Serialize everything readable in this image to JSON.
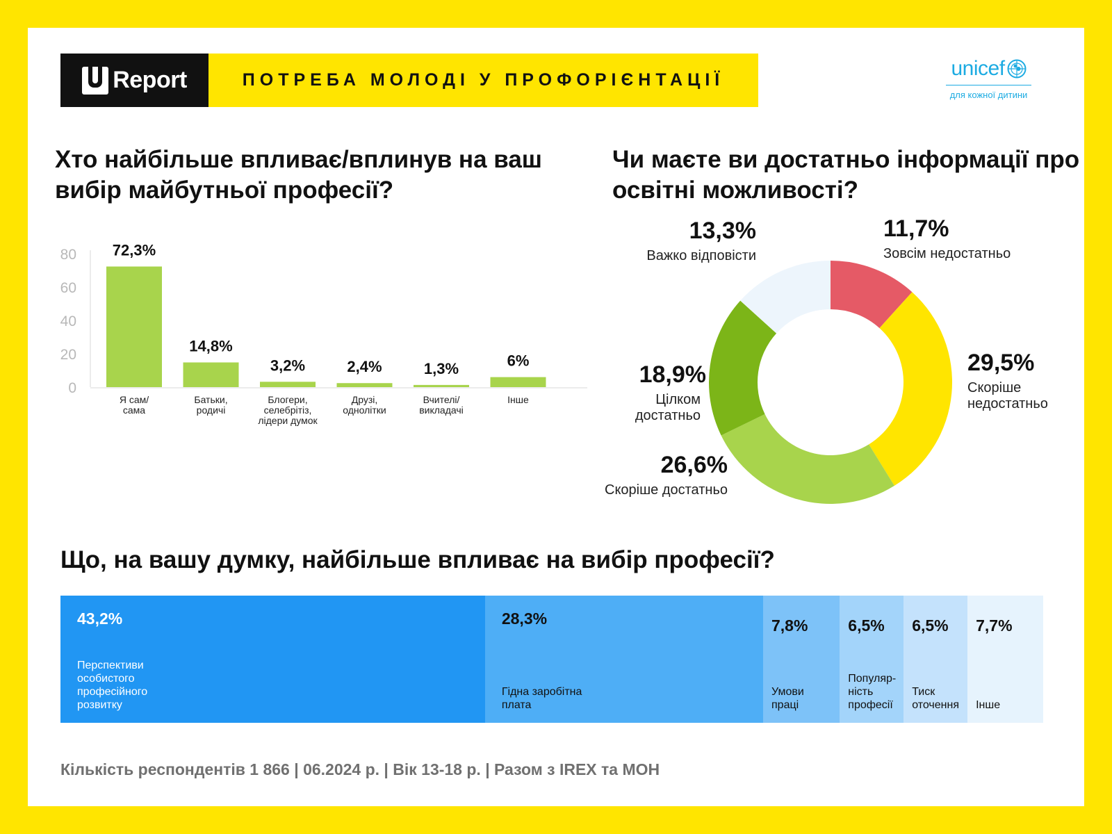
{
  "header": {
    "logo_text": "Report",
    "title": "ПОТРЕБА МОЛОДІ У ПРОФОРІЄНТАЦІЇ"
  },
  "unicef": {
    "brand": "unicef",
    "tagline": "для кожної дитини",
    "color": "#1CABE2"
  },
  "colors": {
    "background": "#FFE500",
    "card": "#FFFFFF"
  },
  "questions": {
    "q1": "Хто найбільше впливає/вплинув на ваш вибір майбутньої професії?",
    "q2": "Чи маєте ви достатньо інформації про освітні можливості?",
    "q3": "Що, на вашу думку, найбільше впливає на вибір професії?"
  },
  "chart_data": [
    {
      "type": "bar",
      "title": "Хто найбільше впливає/вплинув на ваш вибір майбутньої професії?",
      "categories": [
        [
          "Я сам/",
          "сама"
        ],
        [
          "Батьки,",
          "родичі"
        ],
        [
          "Блогери,",
          "селебрітіз,",
          "лідери думок"
        ],
        [
          "Друзі,",
          "однолітки"
        ],
        [
          "Вчителі/",
          "викладачі"
        ],
        [
          "Інше"
        ]
      ],
      "values": [
        72.3,
        14.8,
        3.2,
        2.4,
        1.3,
        6
      ],
      "value_labels": [
        "72,3%",
        "14,8%",
        "3,2%",
        "2,4%",
        "1,3%",
        "6%"
      ],
      "yticks": [
        "0",
        "20",
        "40",
        "60",
        "80"
      ],
      "ylim": [
        0,
        80
      ],
      "grid": false,
      "bar_color": "#A8D44C"
    },
    {
      "type": "pie",
      "subtype": "donut",
      "title": "Чи маєте ви достатньо інформації про освітні можливості?",
      "slices": [
        {
          "label": "Зовсім недостатньо",
          "value": 11.7,
          "value_label": "11,7%",
          "color": "#E55A66"
        },
        {
          "label": "Скоріше недостатньо",
          "value": 29.5,
          "value_label": "29,5%",
          "color": "#FFE500"
        },
        {
          "label": "Скоріше достатньо",
          "value": 26.6,
          "value_label": "26,6%",
          "color": "#A8D44C"
        },
        {
          "label": "Цілком достатньо",
          "value": 18.9,
          "value_label": "18,9%",
          "color": "#7CB518"
        },
        {
          "label": "Важко відповісти",
          "value": 13.3,
          "value_label": "13,3%",
          "color": "#EDF5FC"
        }
      ]
    },
    {
      "type": "bar",
      "subtype": "stacked-100",
      "title": "Що, на вашу думку, найбільше впливає на вибір професії?",
      "segments": [
        {
          "label": "Перспективи особистого професійного розвитку",
          "value": 43.2,
          "value_label": "43,2%",
          "color": "#2196F3"
        },
        {
          "label": "Гідна заробітна плата",
          "value": 28.3,
          "value_label": "28,3%",
          "color": "#4EAEF6"
        },
        {
          "label": "Умови праці",
          "value": 7.8,
          "value_label": "7,8%",
          "color": "#7DC2F8"
        },
        {
          "label": "Популяр-ність професії",
          "value": 6.5,
          "value_label": "6,5%",
          "color": "#A3D4FA"
        },
        {
          "label": "Тиск оточення",
          "value": 6.5,
          "value_label": "6,5%",
          "color": "#C4E2FC"
        },
        {
          "label": "Інше",
          "value": 7.7,
          "value_label": "7,7%",
          "color": "#E6F3FD"
        }
      ]
    }
  ],
  "footer": "Кількість респондентів 1 866 | 06.2024 р. | Вік 13-18 р. | Разом з IREX та МОН"
}
